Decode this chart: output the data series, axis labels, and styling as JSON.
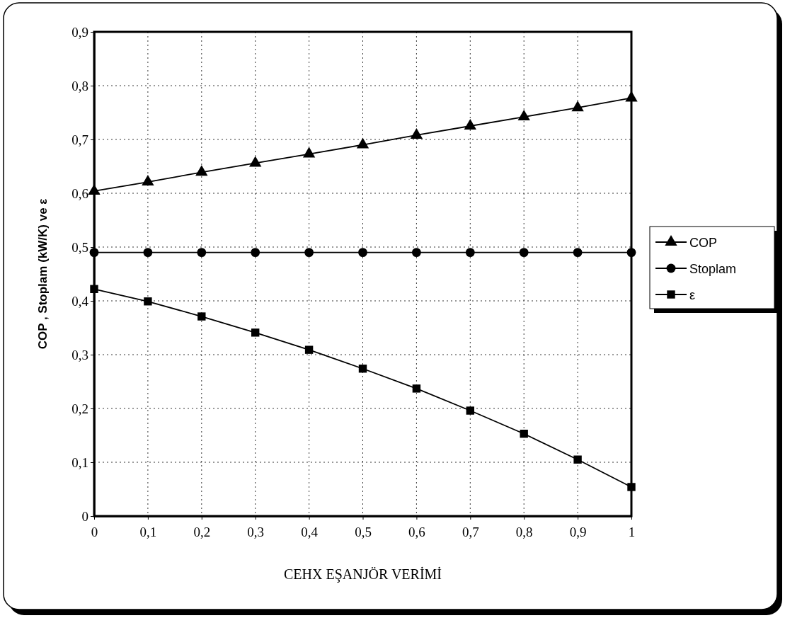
{
  "chart_data": {
    "type": "line",
    "xlabel": "CEHX EŞANJÖR VERİMİ",
    "ylabel": "COP , Stoplam (kW/K) ve ε",
    "x": [
      0,
      0.1,
      0.2,
      0.3,
      0.4,
      0.5,
      0.6,
      0.7,
      0.8,
      0.9,
      1
    ],
    "xlim": [
      0,
      1
    ],
    "xticks": [
      {
        "value": 0,
        "label": "0"
      },
      {
        "value": 0.1,
        "label": "0,1"
      },
      {
        "value": 0.2,
        "label": "0,2"
      },
      {
        "value": 0.3,
        "label": "0,3"
      },
      {
        "value": 0.4,
        "label": "0,4"
      },
      {
        "value": 0.5,
        "label": "0,5"
      },
      {
        "value": 0.6,
        "label": "0,6"
      },
      {
        "value": 0.7,
        "label": "0,7"
      },
      {
        "value": 0.8,
        "label": "0,8"
      },
      {
        "value": 0.9,
        "label": "0,9"
      },
      {
        "value": 1,
        "label": "1"
      }
    ],
    "ylim": [
      0,
      0.9
    ],
    "yticks": [
      {
        "value": 0,
        "label": "0"
      },
      {
        "value": 0.1,
        "label": "0,1"
      },
      {
        "value": 0.2,
        "label": "0,2"
      },
      {
        "value": 0.3,
        "label": "0,3"
      },
      {
        "value": 0.4,
        "label": "0,4"
      },
      {
        "value": 0.5,
        "label": "0,5"
      },
      {
        "value": 0.6,
        "label": "0,6"
      },
      {
        "value": 0.7,
        "label": "0,7"
      },
      {
        "value": 0.8,
        "label": "0,8"
      },
      {
        "value": 0.9,
        "label": "0,9"
      }
    ],
    "grid": true,
    "legend": "right",
    "line_style": "solid",
    "series": [
      {
        "name": "COP",
        "color": "#000000",
        "marker": "triangle",
        "values": [
          0.604,
          0.621,
          0.639,
          0.656,
          0.673,
          0.69,
          0.708,
          0.725,
          0.742,
          0.759,
          0.777
        ]
      },
      {
        "name": "Stoplam",
        "color": "#000000",
        "marker": "circle",
        "values": [
          0.49,
          0.49,
          0.49,
          0.49,
          0.49,
          0.49,
          0.49,
          0.49,
          0.49,
          0.49,
          0.49
        ]
      },
      {
        "name": "ε",
        "color": "#000000",
        "marker": "square",
        "values": [
          0.422,
          0.399,
          0.371,
          0.341,
          0.309,
          0.274,
          0.237,
          0.196,
          0.153,
          0.105,
          0.054
        ]
      }
    ]
  }
}
